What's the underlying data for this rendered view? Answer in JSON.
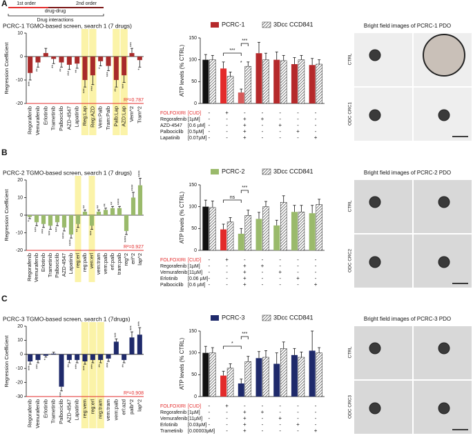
{
  "panel_labels": [
    "A",
    "B",
    "C"
  ],
  "header": {
    "first": "1st order",
    "middle": "drug-drug",
    "second": "2nd order",
    "caption": "Drug interactions"
  },
  "image_panels": [
    {
      "title": "Bright field images of PCRC-1 PDO",
      "row_labels": [
        "CTRL",
        "ODC CRC1"
      ]
    },
    {
      "title": "Bright field images of PCRC-2 PDO",
      "row_labels": [
        "CTRL",
        "ODC CRC2"
      ]
    },
    {
      "title": "Bright field images of PCRC-3 PDO",
      "row_labels": [
        "CTRL",
        "ODC CRC3"
      ]
    }
  ],
  "chart_data": [
    {
      "type": "regression",
      "title": "PCRC-1 TGMO-based screen, search 1 (7 drugs)",
      "y_label": "Regression Coefficient",
      "color": "#a82a2a",
      "categories": [
        "Regorafenib",
        "Vemurafenib",
        "Erlotinib",
        "Trametinib",
        "Palbociclib",
        "AZD-4547",
        "Lapatinib",
        "Reg:Lap",
        "Reg:AZD",
        "Vem:Palb",
        "Tram:Palb",
        "Palb:Lap",
        "AZD:Lap",
        "Vem^2",
        "Tram^2"
      ],
      "values": [
        -7,
        -2.5,
        1.5,
        -1,
        -2.5,
        -3.5,
        -3,
        -10,
        -8,
        -2,
        -4,
        -10,
        -8,
        1.5,
        -1.5
      ],
      "errors": [
        3,
        2,
        2,
        2,
        2,
        2,
        2,
        3,
        4,
        2,
        2,
        3,
        3,
        2,
        3
      ],
      "stars": [
        "***",
        "**",
        null,
        "**",
        "**",
        "***",
        "**",
        "***",
        "***",
        "*",
        "***",
        "**",
        "***",
        "***",
        "*"
      ],
      "highlighted": [
        "Reg:Lap",
        "Reg:AZD",
        "Palb:Lap",
        "AZD:Lap"
      ],
      "r2_label": "R²=0.787",
      "ylim": [
        -20,
        10
      ],
      "yticks": [
        -20,
        -10,
        0,
        10
      ]
    },
    {
      "type": "atp",
      "y_label": "ATP levels (% CTRL)",
      "ylim": [
        0,
        150
      ],
      "yticks": [
        0,
        50,
        100,
        150
      ],
      "series": [
        {
          "name": "PCRC-1",
          "color": "#b5292b",
          "colors": [
            "#111111",
            "#e32b2b",
            "#d65a5a",
            "#b5292b",
            "#b5292b",
            "#b5292b",
            "#b5292b"
          ],
          "values": [
            100,
            80,
            25,
            115,
            100,
            90,
            88
          ],
          "errors": [
            12,
            15,
            8,
            25,
            18,
            15,
            15
          ]
        },
        {
          "name": "3Dcc CCD841",
          "values": [
            100,
            62,
            85,
            100,
            98,
            100,
            90
          ],
          "errors": [
            10,
            10,
            10,
            15,
            12,
            10,
            10
          ]
        }
      ],
      "annotations": [
        "***",
        "***",
        "*"
      ],
      "conditions": [
        {
          "drug": "FOLFOXIRI",
          "dose": "[CUD]",
          "color": "#e32b2b",
          "cells": [
            "-",
            "+",
            "-",
            "-",
            "-",
            "-",
            "-"
          ]
        },
        {
          "drug": "Regorafenib",
          "dose": "[1µM]",
          "cells": [
            "-",
            "-",
            "+",
            "+",
            "-",
            "-",
            "-"
          ]
        },
        {
          "drug": "AZD-4547",
          "dose": "[0.6 µM]",
          "cells": [
            "-",
            "-",
            "+",
            "-",
            "+",
            "-",
            "-"
          ]
        },
        {
          "drug": "Palbociclib",
          "dose": "[0.5µM]",
          "cells": [
            "-",
            "-",
            "+",
            "-",
            "-",
            "+",
            "-"
          ]
        },
        {
          "drug": "Lapatinib",
          "dose": "[0.07µM]",
          "cells": [
            "-",
            "-",
            "+",
            "-",
            "-",
            "-",
            "+"
          ]
        }
      ]
    },
    {
      "type": "regression",
      "title": "PCRC-2 TGMO-based screen, search 1 (7 drugs)",
      "y_label": "Regression Coefficient",
      "color": "#9aba6b",
      "categories": [
        "Regorafenib",
        "Vemurafenib",
        "Erlotinib",
        "Trametinib",
        "Palbociclib",
        "AZD-4547",
        "Lapatinib",
        "reg:erl",
        "reg:palb",
        "ven:erl",
        "vem:tram",
        "vem:palb",
        "erl:palb",
        "tram:palb",
        "reg^2",
        "erl^2",
        "lap^2"
      ],
      "values": [
        -1,
        -4,
        -5,
        -6,
        -4,
        -7,
        -11,
        -5,
        2,
        -6,
        2,
        3,
        4,
        4,
        -9,
        10,
        17
      ],
      "errors": [
        1,
        2,
        2,
        2,
        2,
        2,
        2,
        2,
        1,
        2,
        1,
        1,
        1,
        1,
        2,
        3,
        4
      ],
      "stars": [
        "*",
        "***",
        "***",
        "***",
        "***",
        "****",
        "****",
        "**",
        "**",
        "***",
        "**",
        "**",
        "**",
        "****",
        "****",
        "****",
        "****"
      ],
      "highlighted": [
        "reg:erl",
        "ven:erl"
      ],
      "r2_label": "R²=0.927",
      "ylim": [
        -20,
        20
      ],
      "yticks": [
        -20,
        -10,
        0,
        10,
        20
      ]
    },
    {
      "type": "atp",
      "y_label": "ATP levels (% CTRL)",
      "ylim": [
        0,
        150
      ],
      "yticks": [
        0,
        50,
        100,
        150
      ],
      "series": [
        {
          "name": "PCRC-2",
          "color": "#9aba6b",
          "colors": [
            "#111111",
            "#e32b2b",
            "#9aba6b",
            "#9aba6b",
            "#9aba6b",
            "#9aba6b",
            "#9aba6b"
          ],
          "values": [
            100,
            48,
            38,
            72,
            57,
            88,
            85
          ],
          "errors": [
            15,
            12,
            12,
            15,
            12,
            15,
            18
          ]
        },
        {
          "name": "3Dcc CCD841",
          "values": [
            98,
            65,
            80,
            100,
            110,
            88,
            105
          ],
          "errors": [
            15,
            10,
            12,
            12,
            15,
            15,
            12
          ]
        }
      ],
      "annotations": [
        "ns",
        "***"
      ],
      "conditions": [
        {
          "drug": "FOLFOXIRI",
          "dose": "[CUD]",
          "color": "#e32b2b",
          "cells": [
            "-",
            "+",
            "-",
            "-",
            "-",
            "-",
            "-"
          ]
        },
        {
          "drug": "Regorafenib",
          "dose": "[1µM]",
          "cells": [
            "-",
            "-",
            "+",
            "+",
            "-",
            "-",
            "-"
          ]
        },
        {
          "drug": "Vemurafenib",
          "dose": "[11µM]",
          "cells": [
            "-",
            "-",
            "+",
            "-",
            "+",
            "-",
            "-"
          ]
        },
        {
          "drug": "Erlotinib",
          "dose": "[0.06 µM]",
          "cells": [
            "-",
            "-",
            "+",
            "-",
            "-",
            "+",
            "-"
          ]
        },
        {
          "drug": "Palbociclib",
          "dose": "[0.6 µM]",
          "cells": [
            "-",
            "-",
            "+",
            "-",
            "-",
            "-",
            "+"
          ]
        }
      ]
    },
    {
      "type": "regression",
      "title": "PCRC-3 TGMO-based screen, search 1 (7drugs)",
      "y_label": "Regression Coefficient",
      "color": "#1f2a6b",
      "categories": [
        "Regorafenib",
        "Vemurafenib",
        "Erlotinib",
        "Trametinib",
        "Palbociclib",
        "AZD-4547",
        "Lapatinib",
        "reg:vem",
        "reg:erl",
        "reg:tram",
        "vem:tram",
        "vem:palb",
        "erl:azd",
        "palb^2",
        "lap^2"
      ],
      "values": [
        -5,
        -4,
        -1,
        0.5,
        -23,
        -4,
        -4,
        -5,
        -4,
        -4,
        -3,
        9,
        -4,
        12,
        14
      ],
      "errors": [
        2,
        2,
        1,
        1,
        3,
        2,
        2,
        2,
        2,
        2,
        2,
        2,
        2,
        4,
        5
      ],
      "stars": [
        "***",
        "***",
        "*",
        null,
        "***",
        "**",
        "***",
        "***",
        "***",
        "**",
        "***",
        "***",
        "**",
        "***",
        "***"
      ],
      "highlighted": [
        "reg:vem",
        "reg:erl",
        "reg:tram"
      ],
      "r2_label": "R²=0.908",
      "ylim": [
        -30,
        20
      ],
      "yticks": [
        -30,
        -20,
        -10,
        0,
        10,
        20
      ]
    },
    {
      "type": "atp",
      "y_label": "ATP levels (% CTRL)",
      "ylim": [
        0,
        150
      ],
      "yticks": [
        0,
        50,
        100,
        150
      ],
      "series": [
        {
          "name": "PCRC-3",
          "color": "#1f2a6b",
          "colors": [
            "#111111",
            "#e32b2b",
            "#1f2a6b",
            "#1f2a6b",
            "#1f2a6b",
            "#1f2a6b",
            "#1f2a6b"
          ],
          "values": [
            100,
            48,
            30,
            88,
            75,
            95,
            105
          ],
          "errors": [
            15,
            10,
            10,
            15,
            25,
            15,
            45
          ]
        },
        {
          "name": "3Dcc CCD841",
          "values": [
            100,
            65,
            80,
            90,
            110,
            90,
            100
          ],
          "errors": [
            12,
            10,
            12,
            15,
            15,
            12,
            12
          ]
        }
      ],
      "annotations": [
        "*",
        "***"
      ],
      "conditions": [
        {
          "drug": "FOLFOXIRI",
          "dose": "[CUD]",
          "color": "#e32b2b",
          "cells": [
            "-",
            "+",
            "-",
            "-",
            "-",
            "-",
            "-"
          ]
        },
        {
          "drug": "Regorafenib",
          "dose": "[1µM]",
          "cells": [
            "-",
            "-",
            "+",
            "+",
            "-",
            "-",
            "-"
          ]
        },
        {
          "drug": "Vemurafenib",
          "dose": "[11µM]",
          "cells": [
            "-",
            "-",
            "+",
            "-",
            "+",
            "-",
            "-"
          ]
        },
        {
          "drug": "Erlotinib",
          "dose": "[0.03µM]",
          "cells": [
            "-",
            "-",
            "+",
            "-",
            "-",
            "+",
            "-"
          ]
        },
        {
          "drug": "Trametinib",
          "dose": "[0.00003µM]",
          "cells": [
            "-",
            "-",
            "+",
            "-",
            "-",
            "-",
            "+"
          ]
        }
      ]
    }
  ]
}
